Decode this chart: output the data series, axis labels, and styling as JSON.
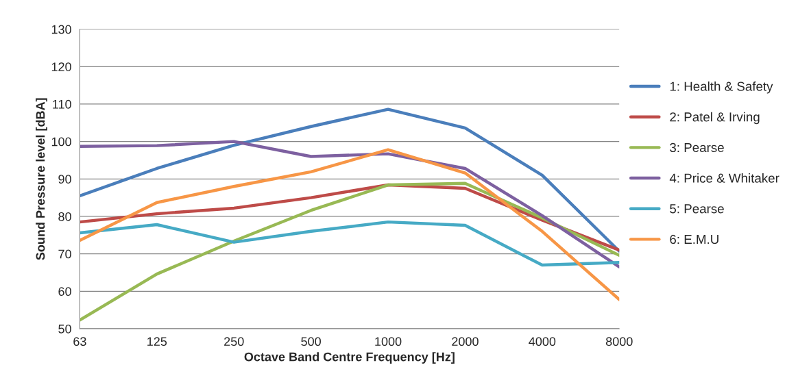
{
  "chart_data": {
    "type": "line",
    "xlabel": "Octave Band Centre Frequency [Hz]",
    "ylabel": "Sound Pressure level [dBA]",
    "categories": [
      "63",
      "125",
      "250",
      "500",
      "1000",
      "2000",
      "4000",
      "8000"
    ],
    "ylim": [
      50,
      130
    ],
    "yticks": [
      50,
      60,
      70,
      80,
      90,
      100,
      110,
      120,
      130
    ],
    "grid": "y",
    "legend": "right",
    "marker": "none",
    "line_style": "solid",
    "series": [
      {
        "name": "1: Health & Safety",
        "color": "#4a7ebb",
        "values": [
          85.5,
          92.8,
          99,
          104,
          108.6,
          103.6,
          91,
          70.7
        ]
      },
      {
        "name": "2: Patel & Irving",
        "color": "#be4b48",
        "values": [
          78.5,
          80.7,
          82.2,
          85,
          88.4,
          87.5,
          79,
          71
        ]
      },
      {
        "name": "3: Pearse",
        "color": "#98b954",
        "values": [
          52.3,
          64.6,
          73.4,
          81.6,
          88.4,
          88.8,
          79.6,
          69.6
        ]
      },
      {
        "name": "4: Price & Whitaker",
        "color": "#7d60a0",
        "values": [
          98.7,
          98.9,
          100,
          96,
          96.7,
          92.8,
          80.2,
          66.5
        ]
      },
      {
        "name": "5: Pearse",
        "color": "#46aac5",
        "values": [
          75.6,
          77.8,
          73.1,
          76,
          78.5,
          77.6,
          67,
          67.7
        ]
      },
      {
        "name": "6: E.M.U",
        "color": "#f79646",
        "values": [
          73.6,
          83.7,
          88,
          91.9,
          97.8,
          91.6,
          76,
          57.8
        ]
      }
    ]
  }
}
